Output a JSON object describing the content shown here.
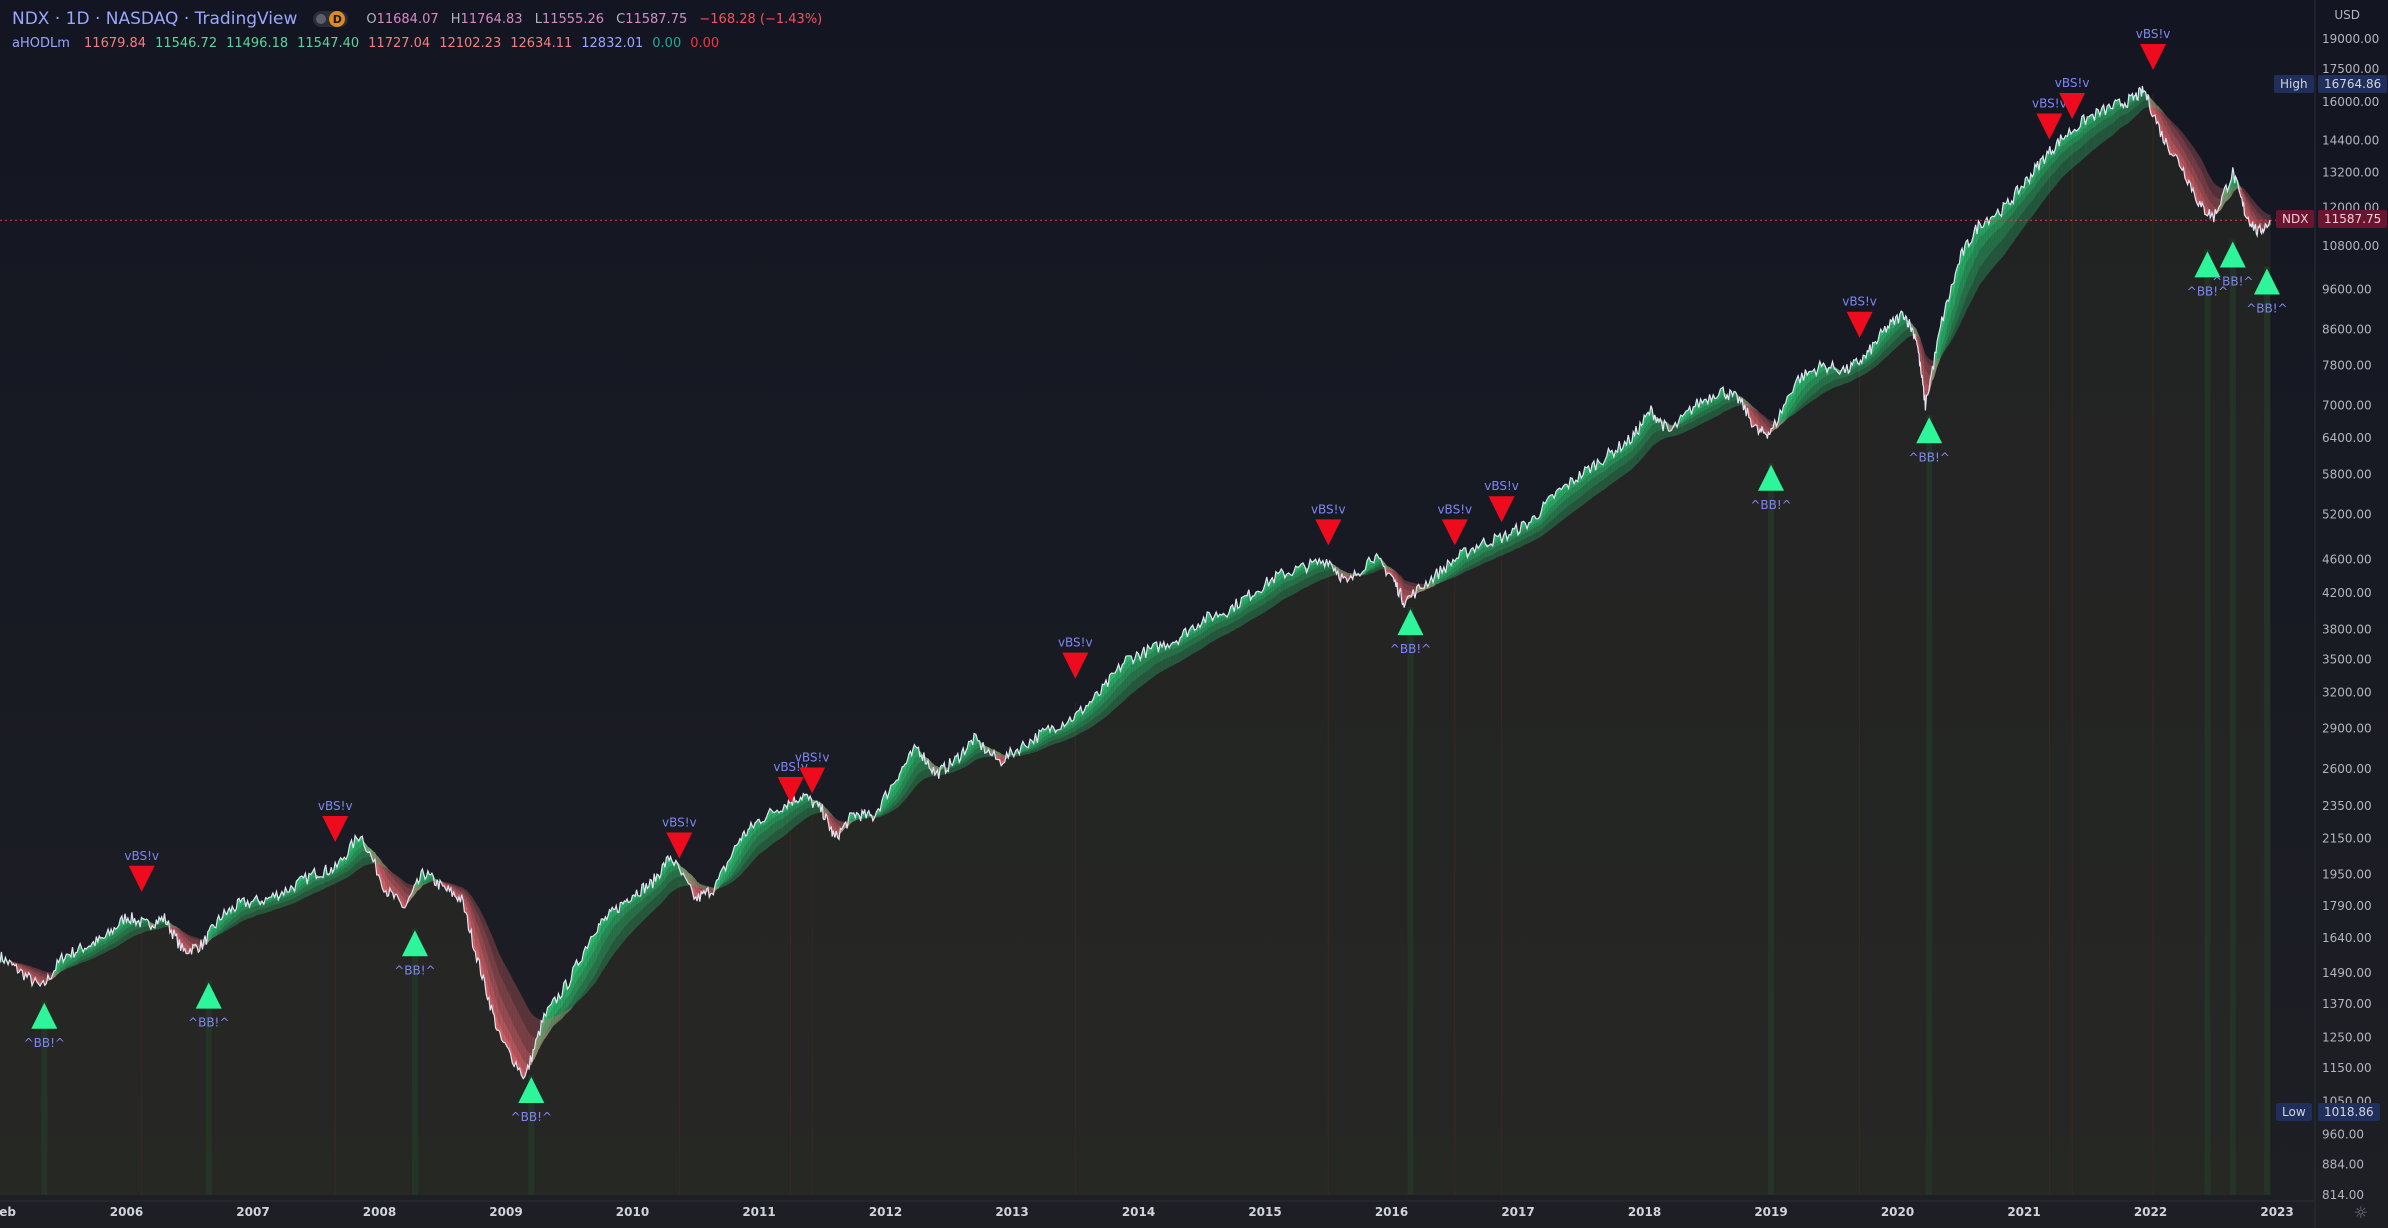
{
  "header": {
    "symbol_line": "NDX · 1D · NASDAQ · TradingView",
    "interval_badge": "D",
    "open_label": "O",
    "open": "11684.07",
    "high_label": "H",
    "high": "11764.83",
    "low_label": "L",
    "low": "11555.26",
    "close_label": "C",
    "close": "11587.75",
    "change": "−168.28 (−1.43%)"
  },
  "indicator": {
    "name": "aHODLm",
    "values": [
      {
        "text": "11679.84",
        "color": "#f77c80"
      },
      {
        "text": "11546.72",
        "color": "#5fd39c"
      },
      {
        "text": "11496.18",
        "color": "#5fd39c"
      },
      {
        "text": "11547.40",
        "color": "#5fd39c"
      },
      {
        "text": "11727.04",
        "color": "#f77c80"
      },
      {
        "text": "12102.23",
        "color": "#f77c80"
      },
      {
        "text": "12634.11",
        "color": "#f77c80"
      },
      {
        "text": "12832.01",
        "color": "#9aa6ff"
      },
      {
        "text": "0.00",
        "color": "#22ab94"
      },
      {
        "text": "0.00",
        "color": "#f23645"
      }
    ]
  },
  "price_scale": {
    "currency": "USD",
    "high_tag": {
      "label": "High",
      "value": "16764.86"
    },
    "low_tag": {
      "label": "Low",
      "value": "1018.86"
    },
    "last_tag": {
      "label": "NDX",
      "value": "11587.75"
    }
  },
  "colors": {
    "background": "#161a25",
    "bull_band": "#2bd67b",
    "bear_band": "#f06d72",
    "buy_marker": "#2ff59a",
    "sell_marker": "#ee0b1d",
    "label_text": "#7f86f5",
    "price_line": "#e2e4f3"
  },
  "chart_data": {
    "type": "line",
    "title": "NDX · 1D · NASDAQ",
    "yscale": "log",
    "ylim": [
      814,
      20000
    ],
    "xlim": [
      2005.0,
      2023.3
    ],
    "y_ticks": [
      814,
      884,
      960,
      1050,
      1150,
      1250,
      1370,
      1490,
      1640,
      1790,
      1950,
      2150,
      2350,
      2600,
      2900,
      3200,
      3500,
      3800,
      4200,
      4600,
      5200,
      5800,
      6400,
      7000,
      7800,
      8600,
      9600,
      10800,
      12000,
      13200,
      14400,
      16000,
      17500,
      19000
    ],
    "y_tick_labels": [
      "814.00",
      "884.00",
      "960.00",
      "1050.00",
      "1150.00",
      "1250.00",
      "1370.00",
      "1490.00",
      "1640.00",
      "1790.00",
      "1950.00",
      "2150.00",
      "2350.00",
      "2600.00",
      "2900.00",
      "3200.00",
      "3500.00",
      "3800.00",
      "4200.00",
      "4600.00",
      "5200.00",
      "5800.00",
      "6400.00",
      "7000.00",
      "7800.00",
      "8600.00",
      "9600.00",
      "10800.00",
      "12000.00",
      "13200.00",
      "14400.00",
      "16000.00",
      "17500.00",
      "19000.00"
    ],
    "x_ticks": [
      {
        "x": 2005.03,
        "label": "Feb"
      },
      {
        "x": 2006.0,
        "label": "2006"
      },
      {
        "x": 2007.0,
        "label": "2007"
      },
      {
        "x": 2008.0,
        "label": "2008"
      },
      {
        "x": 2009.0,
        "label": "2009"
      },
      {
        "x": 2010.0,
        "label": "2010"
      },
      {
        "x": 2011.0,
        "label": "2011"
      },
      {
        "x": 2012.0,
        "label": "2012"
      },
      {
        "x": 2013.0,
        "label": "2013"
      },
      {
        "x": 2014.0,
        "label": "2014"
      },
      {
        "x": 2015.0,
        "label": "2015"
      },
      {
        "x": 2016.0,
        "label": "2016"
      },
      {
        "x": 2017.0,
        "label": "2017"
      },
      {
        "x": 2018.0,
        "label": "2018"
      },
      {
        "x": 2019.0,
        "label": "2019"
      },
      {
        "x": 2020.0,
        "label": "2020"
      },
      {
        "x": 2021.0,
        "label": "2021"
      },
      {
        "x": 2022.0,
        "label": "2022"
      },
      {
        "x": 2023.0,
        "label": "2023"
      }
    ],
    "series": [
      {
        "name": "NDX",
        "x": [
          2005.0,
          2005.15,
          2005.33,
          2005.5,
          2005.67,
          2005.83,
          2006.0,
          2006.15,
          2006.3,
          2006.45,
          2006.6,
          2006.75,
          2006.9,
          2007.1,
          2007.3,
          2007.5,
          2007.65,
          2007.85,
          2008.05,
          2008.2,
          2008.35,
          2008.5,
          2008.65,
          2008.8,
          2008.95,
          2009.15,
          2009.3,
          2009.5,
          2009.7,
          2009.85,
          2010.0,
          2010.15,
          2010.3,
          2010.5,
          2010.65,
          2010.85,
          2011.0,
          2011.2,
          2011.35,
          2011.5,
          2011.6,
          2011.75,
          2011.9,
          2012.1,
          2012.25,
          2012.4,
          2012.55,
          2012.7,
          2012.9,
          2013.1,
          2013.3,
          2013.5,
          2013.7,
          2013.9,
          2014.1,
          2014.3,
          2014.5,
          2014.7,
          2014.9,
          2015.1,
          2015.3,
          2015.5,
          2015.65,
          2015.85,
          2016.0,
          2016.1,
          2016.3,
          2016.5,
          2016.7,
          2016.9,
          2017.1,
          2017.3,
          2017.5,
          2017.7,
          2017.9,
          2018.05,
          2018.2,
          2018.4,
          2018.6,
          2018.75,
          2018.9,
          2019.0,
          2019.2,
          2019.4,
          2019.6,
          2019.75,
          2019.9,
          2020.05,
          2020.15,
          2020.22,
          2020.35,
          2020.5,
          2020.65,
          2020.85,
          2021.0,
          2021.15,
          2021.3,
          2021.5,
          2021.7,
          2021.85,
          2021.95,
          2022.1,
          2022.25,
          2022.4,
          2022.5,
          2022.65,
          2022.75,
          2022.85,
          2022.95
        ],
        "values": [
          1560,
          1500,
          1430,
          1560,
          1600,
          1640,
          1740,
          1700,
          1730,
          1580,
          1610,
          1740,
          1800,
          1820,
          1880,
          1960,
          1980,
          2180,
          1870,
          1780,
          1960,
          1880,
          1820,
          1500,
          1250,
          1120,
          1320,
          1460,
          1680,
          1760,
          1850,
          1900,
          2050,
          1820,
          1880,
          2150,
          2260,
          2360,
          2420,
          2320,
          2150,
          2300,
          2280,
          2560,
          2760,
          2560,
          2660,
          2820,
          2650,
          2780,
          2900,
          3000,
          3200,
          3500,
          3600,
          3700,
          3900,
          4000,
          4200,
          4400,
          4500,
          4600,
          4300,
          4650,
          4400,
          4100,
          4350,
          4600,
          4800,
          4900,
          5100,
          5500,
          5800,
          6100,
          6400,
          6900,
          6500,
          7000,
          7300,
          7100,
          6500,
          6500,
          7500,
          7800,
          7700,
          8000,
          8600,
          9000,
          8400,
          7000,
          8800,
          10500,
          11500,
          12000,
          12800,
          13700,
          14500,
          15300,
          15800,
          16100,
          16500,
          14500,
          13400,
          12000,
          11700,
          13200,
          11800,
          11200,
          11587.75
        ]
      }
    ],
    "signals": [
      {
        "type": "buy",
        "x": 2005.35,
        "price": 1420,
        "label": "^BB!^"
      },
      {
        "type": "sell",
        "x": 2006.12,
        "price": 1790,
        "label": "vBS!v"
      },
      {
        "type": "buy",
        "x": 2006.65,
        "price": 1500,
        "label": "^BB!^"
      },
      {
        "type": "sell",
        "x": 2007.65,
        "price": 2050,
        "label": "vBS!v"
      },
      {
        "type": "buy",
        "x": 2008.28,
        "price": 1730,
        "label": "^BB!^"
      },
      {
        "type": "buy",
        "x": 2009.2,
        "price": 1160,
        "label": "^BB!^"
      },
      {
        "type": "sell",
        "x": 2010.37,
        "price": 1960,
        "label": "vBS!v"
      },
      {
        "type": "sell",
        "x": 2011.25,
        "price": 2280,
        "label": "vBS!v"
      },
      {
        "type": "sell",
        "x": 2011.42,
        "price": 2340,
        "label": "vBS!v"
      },
      {
        "type": "sell",
        "x": 2013.5,
        "price": 3200,
        "label": "vBS!v"
      },
      {
        "type": "sell",
        "x": 2015.5,
        "price": 4600,
        "label": "vBS!v"
      },
      {
        "type": "buy",
        "x": 2016.15,
        "price": 4150,
        "label": "^BB!^"
      },
      {
        "type": "sell",
        "x": 2016.5,
        "price": 4600,
        "label": "vBS!v"
      },
      {
        "type": "sell",
        "x": 2016.87,
        "price": 4900,
        "label": "vBS!v"
      },
      {
        "type": "buy",
        "x": 2019.0,
        "price": 6150,
        "label": "^BB!^"
      },
      {
        "type": "sell",
        "x": 2019.7,
        "price": 8100,
        "label": "vBS!v"
      },
      {
        "type": "buy",
        "x": 2020.25,
        "price": 7000,
        "label": "^BB!^"
      },
      {
        "type": "sell",
        "x": 2021.2,
        "price": 13900,
        "label": "vBS!v"
      },
      {
        "type": "sell",
        "x": 2021.38,
        "price": 14700,
        "label": "vBS!v"
      },
      {
        "type": "sell",
        "x": 2022.02,
        "price": 16800,
        "label": "vBS!v"
      },
      {
        "type": "buy",
        "x": 2022.45,
        "price": 11000,
        "label": "^BB!^"
      },
      {
        "type": "buy",
        "x": 2022.65,
        "price": 11300,
        "label": "^BB!^"
      },
      {
        "type": "buy",
        "x": 2022.92,
        "price": 10500,
        "label": "^BB!^"
      }
    ]
  }
}
